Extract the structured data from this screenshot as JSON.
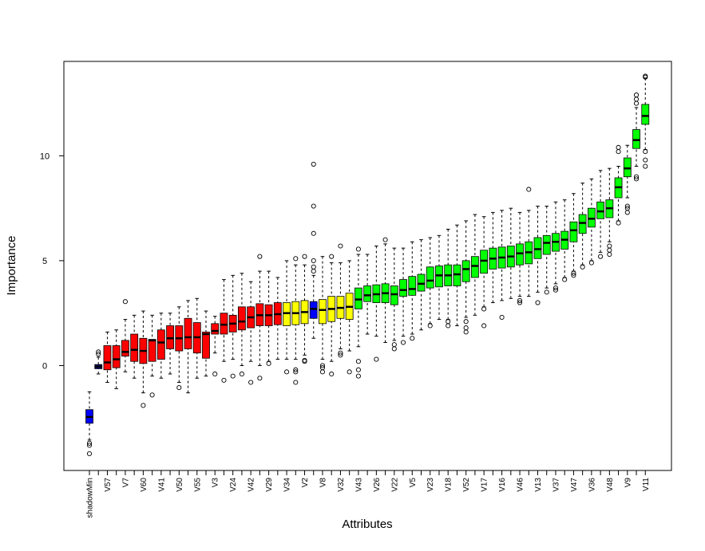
{
  "chart_data": {
    "type": "box",
    "xlabel": "Attributes",
    "ylabel": "Importance",
    "categories": [
      "shadowMin",
      null,
      "V57",
      null,
      "V7",
      null,
      "V60",
      null,
      "V41",
      null,
      "V50",
      null,
      "V55",
      null,
      "V3",
      null,
      "V24",
      null,
      "V42",
      null,
      "V29",
      null,
      "V34",
      null,
      "V2",
      null,
      "V8",
      null,
      "V32",
      null,
      "V43",
      null,
      "V26",
      null,
      "V22",
      null,
      "V5",
      null,
      "V23",
      null,
      "V18",
      null,
      "V52",
      null,
      "V17",
      null,
      "V16",
      null,
      "V46",
      null,
      "V13",
      null,
      "V37",
      null,
      "V47",
      null,
      "V36",
      null,
      "V48",
      null,
      "V9",
      null,
      "V11"
    ],
    "colors": [
      "#0000ff",
      "#000080",
      "#ff0000",
      "#ff0000",
      "#ff0000",
      "#ff0000",
      "#ff0000",
      "#ff0000",
      "#ff0000",
      "#ff0000",
      "#ff0000",
      "#ff0000",
      "#ff0000",
      "#ff0000",
      "#ff0000",
      "#ff0000",
      "#ff0000",
      "#ff0000",
      "#ff0000",
      "#ff0000",
      "#ff0000",
      "#ff0000",
      "#ffff00",
      "#ffff00",
      "#ffff00",
      "#0000ff",
      "#ffff00",
      "#ffff00",
      "#ffff00",
      "#ffff00",
      "#00ff00",
      "#00ff00",
      "#00ff00",
      "#00ff00",
      "#00ff00",
      "#00ff00",
      "#00ff00",
      "#00ff00",
      "#00ff00",
      "#00ff00",
      "#00ff00",
      "#00ff00",
      "#00ff00",
      "#00ff00",
      "#00ff00",
      "#00ff00",
      "#00ff00",
      "#00ff00",
      "#00ff00",
      "#00ff00",
      "#00ff00",
      "#00ff00",
      "#00ff00",
      "#00ff00",
      "#00ff00",
      "#00ff00",
      "#00ff00",
      "#00ff00",
      "#00ff00",
      "#00ff00",
      "#00ff00",
      "#00ff00",
      "#00ff00"
    ],
    "whisker_low": [
      -3.55,
      -0.4,
      -0.8,
      -1.1,
      -0.3,
      -0.6,
      -1.3,
      -0.5,
      -0.6,
      -0.4,
      -0.8,
      -1.3,
      -0.6,
      -0.5,
      0.6,
      0.2,
      0.3,
      0,
      0.2,
      0,
      0.2,
      0.3,
      0.3,
      0.3,
      0.5,
      1.3,
      0.3,
      0.2,
      0.8,
      0.7,
      0.9,
      1.5,
      1.4,
      1.1,
      1.2,
      1.4,
      1.5,
      1.7,
      2.0,
      2.2,
      2.2,
      1.9,
      2.3,
      2.4,
      2.8,
      3.0,
      3.1,
      3.2,
      3.3,
      3.3,
      3.5,
      3.7,
      3.9,
      4.2,
      4.5,
      4.8,
      5.0,
      5.4,
      5.9,
      6.9,
      8.0,
      9.5,
      10.3
    ],
    "q1": [
      -2.75,
      -0.15,
      -0.2,
      -0.1,
      0.45,
      0.2,
      0.1,
      0.2,
      0.3,
      0.8,
      0.7,
      0.8,
      0.6,
      0.35,
      1.5,
      1.5,
      1.6,
      1.7,
      1.8,
      1.9,
      1.9,
      1.95,
      1.9,
      1.95,
      2.0,
      2.25,
      2.0,
      2.1,
      2.25,
      2.2,
      2.7,
      3.05,
      3.0,
      3.0,
      2.9,
      3.3,
      3.35,
      3.55,
      3.7,
      3.75,
      3.8,
      3.8,
      4.0,
      4.2,
      4.4,
      4.6,
      4.65,
      4.7,
      4.8,
      4.85,
      5.1,
      5.3,
      5.45,
      5.55,
      5.9,
      6.3,
      6.6,
      7.0,
      7.05,
      8.0,
      9.0,
      10.35,
      11.5
    ],
    "median": [
      -2.45,
      -0.05,
      0.15,
      0.3,
      0.65,
      0.75,
      0.7,
      1.2,
      1.1,
      1.3,
      1.3,
      1.35,
      1.35,
      1.5,
      1.65,
      1.95,
      2.0,
      2.1,
      2.3,
      2.4,
      2.4,
      2.45,
      2.5,
      2.5,
      2.55,
      2.7,
      2.65,
      2.7,
      2.75,
      2.8,
      3.15,
      3.35,
      3.4,
      3.45,
      3.4,
      3.6,
      3.65,
      3.9,
      4.05,
      4.3,
      4.3,
      4.35,
      4.6,
      4.75,
      5.0,
      5.1,
      5.15,
      5.2,
      5.35,
      5.4,
      5.55,
      5.85,
      5.9,
      6.0,
      6.45,
      6.8,
      7.0,
      7.35,
      7.5,
      8.5,
      9.4,
      10.75,
      11.9
    ],
    "q3": [
      -2.1,
      0.05,
      0.95,
      0.95,
      1.2,
      1.5,
      1.3,
      1.25,
      1.7,
      1.9,
      1.9,
      2.25,
      2.05,
      1.6,
      2.0,
      2.5,
      2.4,
      2.8,
      2.8,
      2.95,
      2.9,
      3.0,
      3.0,
      3.05,
      3.1,
      3.05,
      3.15,
      3.3,
      3.3,
      3.45,
      3.7,
      3.8,
      3.85,
      3.9,
      3.8,
      4.1,
      4.25,
      4.35,
      4.7,
      4.75,
      4.8,
      4.8,
      5.0,
      5.2,
      5.5,
      5.6,
      5.65,
      5.7,
      5.8,
      5.9,
      6.1,
      6.2,
      6.3,
      6.4,
      6.85,
      7.2,
      7.5,
      7.8,
      7.9,
      8.95,
      9.9,
      11.25,
      12.45
    ],
    "whisker_high": [
      -1.25,
      0.4,
      1.6,
      1.7,
      2.2,
      2.4,
      2.6,
      2.4,
      2.5,
      2.5,
      2.8,
      3.1,
      3.2,
      2.6,
      2.35,
      4.1,
      4.3,
      4.4,
      4.0,
      4.5,
      4.5,
      4.2,
      5.0,
      4.8,
      4.8,
      4.3,
      5.2,
      4.9,
      4.9,
      5.0,
      5.3,
      5.3,
      5.7,
      5.8,
      5.6,
      5.6,
      5.9,
      6.0,
      6.1,
      6.2,
      6.5,
      6.7,
      6.9,
      7.2,
      7.1,
      7.3,
      7.4,
      7.5,
      7.3,
      7.4,
      7.6,
      7.6,
      7.8,
      7.9,
      8.2,
      8.7,
      8.9,
      9.3,
      9.4,
      9.5,
      10.5,
      12.3,
      13.7
    ],
    "outliers": [
      [
        -3.7,
        -3.8,
        -4.2
      ],
      [
        0.55,
        0.65
      ],
      [],
      [],
      [
        3.05
      ],
      [],
      [
        -1.9
      ],
      [
        -1.4
      ],
      [],
      [],
      [
        -1.05
      ],
      [],
      [],
      [],
      [
        -0.4
      ],
      [
        -0.7
      ],
      [
        -0.5
      ],
      [
        -0.4
      ],
      [
        -0.8
      ],
      [
        5.2,
        -0.6
      ],
      [
        0.1
      ],
      [],
      [
        -0.3
      ],
      [
        -0.8,
        -0.3,
        -0.2,
        5.1
      ],
      [
        0.2,
        0.25,
        5.2
      ],
      [
        4.5,
        4.7,
        5.0,
        6.3,
        7.6,
        9.6
      ],
      [
        -0.1,
        -0.3,
        0
      ],
      [
        5.2,
        -0.4
      ],
      [
        0.5,
        0.6,
        5.7
      ],
      [
        -0.3
      ],
      [
        -0.5,
        -0.2,
        0.2,
        5.55
      ],
      [],
      [
        0.3
      ],
      [
        6.0
      ],
      [
        0.8,
        1.0
      ],
      [
        1.1
      ],
      [
        1.3
      ],
      [],
      [
        1.9
      ],
      [],
      [
        1.9,
        2.1
      ],
      [],
      [
        1.6,
        1.8,
        2.1
      ],
      [],
      [
        1.9,
        2.7
      ],
      [],
      [
        2.3
      ],
      [],
      [
        3.0,
        3.1
      ],
      [
        8.4
      ],
      [
        3.0
      ],
      [
        3.5
      ],
      [
        3.6,
        3.7
      ],
      [
        4.1
      ],
      [
        4.3,
        4.4
      ],
      [
        4.7
      ],
      [
        4.9
      ],
      [
        5.2
      ],
      [
        5.3,
        5.5,
        5.7
      ],
      [
        6.8,
        10.2,
        10.4
      ],
      [
        7.3,
        7.5,
        7.6
      ],
      [
        9.0,
        8.9,
        12.5,
        12.7,
        12.9
      ],
      [
        9.5,
        9.8,
        10.2,
        13.75,
        13.8
      ]
    ],
    "ylim": [
      -5.0,
      14.5
    ],
    "yticks": [
      0,
      5,
      10
    ]
  }
}
